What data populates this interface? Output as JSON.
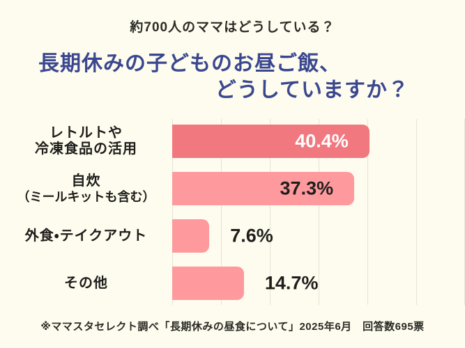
{
  "header": {
    "eyebrow": "約700人のママはどうしている？"
  },
  "title": {
    "line1": "長期休みの子どものお昼ご飯、",
    "line2": "どうしていますか？"
  },
  "footer": {
    "note": "※ママスタセレクト調べ「長期休みの昼食について」2025年6月　回答数695票"
  },
  "colors": {
    "background": "#fdfcee",
    "title_navy": "#3a478f",
    "bar_accent": "#f1787e",
    "bar_light": "#fe999d",
    "gridline": "#e5e3d7",
    "text_dark": "#1d1c1a"
  },
  "chart_data": {
    "type": "bar",
    "orientation": "horizontal",
    "title": "長期休みの子どものお昼ご飯、どうしていますか？",
    "subtitle": "約700人のママはどうしている？",
    "categories": [
      "レトルトや冷凍食品の活用",
      "自炊（ミールキットも含む）",
      "外食・テイクアウト",
      "その他"
    ],
    "values": [
      40.4,
      37.3,
      7.6,
      14.7
    ],
    "value_labels": [
      "40.4%",
      "37.3%",
      "7.6%",
      "14.7%"
    ],
    "xlim": [
      0,
      60
    ],
    "gridline_step_percent": 10,
    "grid": true,
    "legend": false,
    "source_note": "※ママスタセレクト調べ「長期休みの昼食について」2025年6月　回答数695票",
    "bars": [
      {
        "label_lines": [
          {
            "text": "レトルトや",
            "small": false
          },
          {
            "text": "冷凍食品の活用",
            "small": false
          }
        ],
        "value": 40.4,
        "value_label": "40.4%",
        "color": "#f1787e",
        "value_inside": true,
        "value_color": "#ffffff"
      },
      {
        "label_lines": [
          {
            "text": "自炊",
            "small": false
          },
          {
            "text": "（ミールキットも含む）",
            "small": true
          }
        ],
        "value": 37.3,
        "value_label": "37.3%",
        "color": "#fe999d",
        "value_inside": true,
        "value_color": "#1f1e1c"
      },
      {
        "label_lines": [
          {
            "text": "外食・テイクアウト",
            "small": false
          }
        ],
        "value": 7.6,
        "value_label": "7.6%",
        "color": "#fe999d",
        "value_inside": false,
        "value_color": "#1f1e1c"
      },
      {
        "label_lines": [
          {
            "text": "その他",
            "small": false
          }
        ],
        "value": 14.7,
        "value_label": "14.7%",
        "color": "#fe999d",
        "value_inside": false,
        "value_color": "#1f1e1c"
      }
    ]
  }
}
